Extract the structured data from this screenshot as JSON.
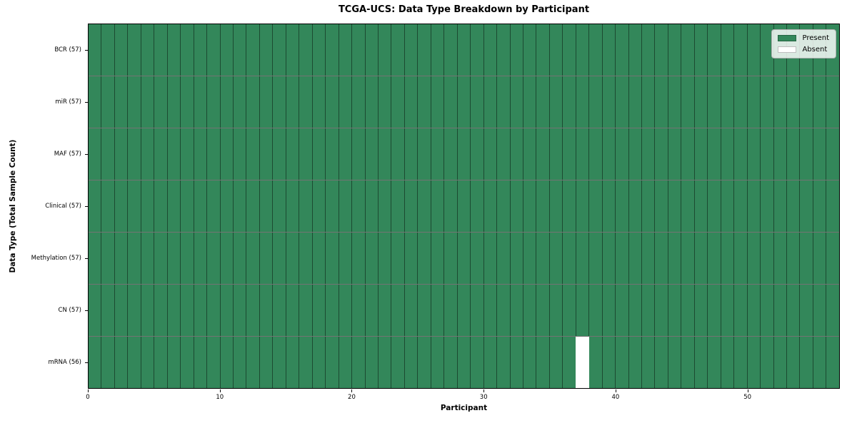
{
  "chart_data": {
    "type": "heatmap",
    "title": "TCGA-UCS: Data Type Breakdown by Participant",
    "xlabel": "Participant",
    "ylabel": "Data Type (Total Sample Count)",
    "n_participants": 57,
    "x_range": [
      0,
      57
    ],
    "x_ticks": [
      0,
      10,
      20,
      30,
      40,
      50
    ],
    "rows": [
      {
        "label": "BCR (57)",
        "data_type": "BCR",
        "present_count": 57,
        "absent_participants": []
      },
      {
        "label": "miR (57)",
        "data_type": "miR",
        "present_count": 57,
        "absent_participants": []
      },
      {
        "label": "MAF (57)",
        "data_type": "MAF",
        "present_count": 57,
        "absent_participants": []
      },
      {
        "label": "Clinical (57)",
        "data_type": "Clinical",
        "present_count": 57,
        "absent_participants": []
      },
      {
        "label": "Methylation (57)",
        "data_type": "Methylation",
        "present_count": 57,
        "absent_participants": []
      },
      {
        "label": "CN (57)",
        "data_type": "CN",
        "present_count": 57,
        "absent_participants": []
      },
      {
        "label": "mRNA (56)",
        "data_type": "mRNA",
        "present_count": 56,
        "absent_participants": [
          37
        ]
      }
    ],
    "legend": {
      "position": "upper right",
      "present": "Present",
      "absent": "Absent"
    },
    "colors": {
      "present": "#33875a",
      "absent": "#ffffff",
      "grid_line": "rgba(0,0,0,0.45)"
    },
    "grid": "on"
  }
}
